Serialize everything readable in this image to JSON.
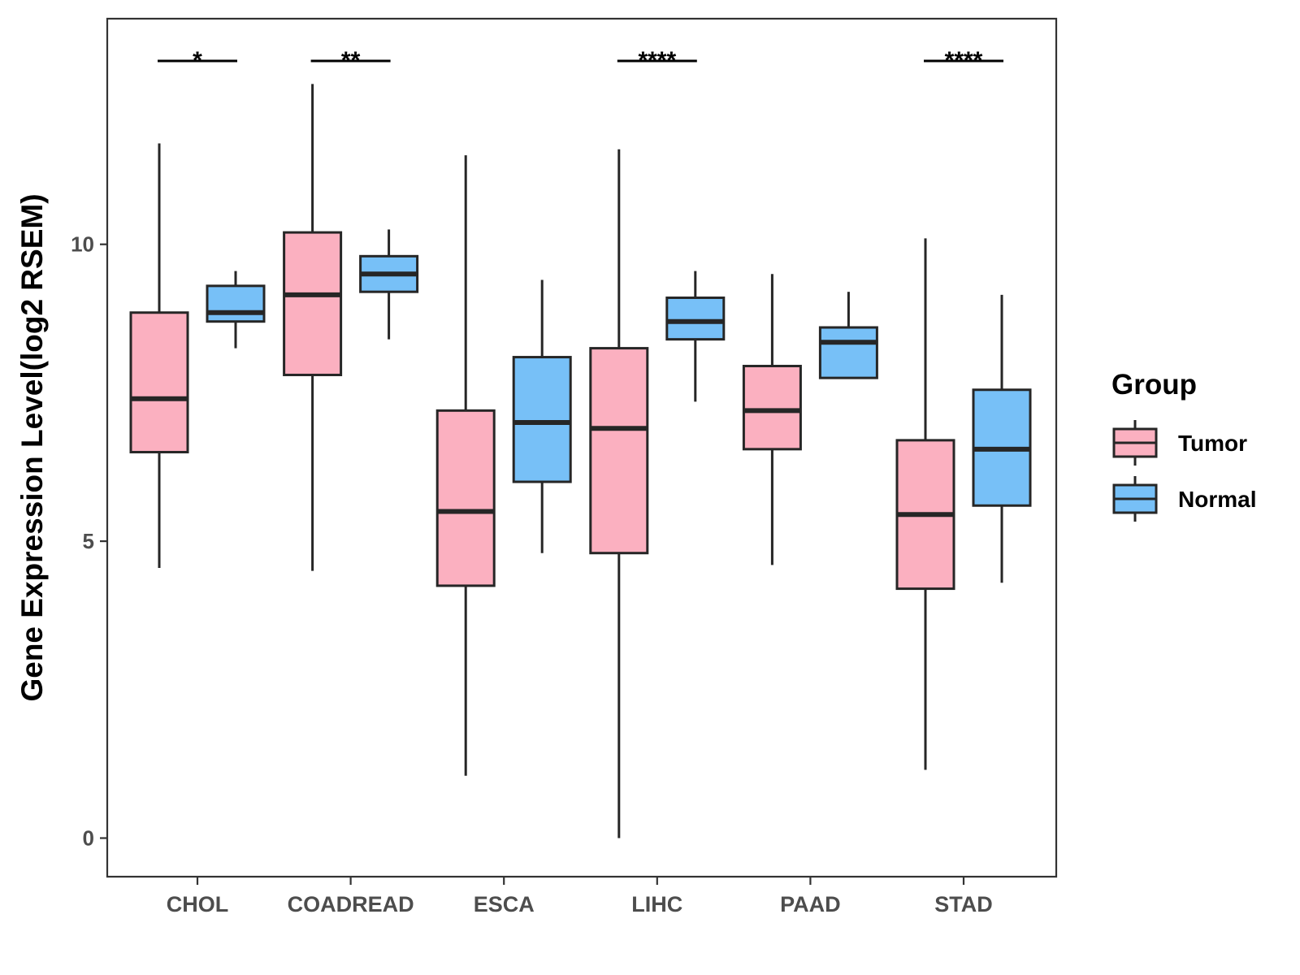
{
  "colors": {
    "tumor": "#FBB0C0",
    "normal": "#77C0F7",
    "outline": "#262626",
    "panel_border": "#333333",
    "tick_text": "#4d4d4d"
  },
  "chart_data": {
    "type": "boxplot",
    "title": "",
    "xlabel": "",
    "ylabel": "Gene Expression Level(log2 RSEM)",
    "ylim": [
      -0.65,
      13.8
    ],
    "y_ticks": [
      0,
      5,
      10
    ],
    "y_tick_labels": [
      "0",
      "5",
      "10"
    ],
    "grid": false,
    "legend_position": "right",
    "legend": {
      "title": "Group",
      "entries": [
        {
          "name": "Tumor",
          "color_key": "tumor"
        },
        {
          "name": "Normal",
          "color_key": "normal"
        }
      ]
    },
    "categories": [
      "CHOL",
      "COADREAD",
      "ESCA",
      "LIHC",
      "PAAD",
      "STAD"
    ],
    "series": [
      {
        "name": "Tumor",
        "color_key": "tumor",
        "boxes": [
          {
            "min": 4.55,
            "q1": 6.5,
            "median": 7.4,
            "q3": 8.85,
            "max": 11.7
          },
          {
            "min": 4.5,
            "q1": 7.8,
            "median": 9.15,
            "q3": 10.2,
            "max": 12.7
          },
          {
            "min": 1.05,
            "q1": 4.25,
            "median": 5.5,
            "q3": 7.2,
            "max": 11.5
          },
          {
            "min": 0.0,
            "q1": 4.8,
            "median": 6.9,
            "q3": 8.25,
            "max": 11.6
          },
          {
            "min": 4.6,
            "q1": 6.55,
            "median": 7.2,
            "q3": 7.95,
            "max": 9.5
          },
          {
            "min": 1.15,
            "q1": 4.2,
            "median": 5.45,
            "q3": 6.7,
            "max": 10.1
          }
        ]
      },
      {
        "name": "Normal",
        "color_key": "normal",
        "boxes": [
          {
            "min": 8.25,
            "q1": 8.7,
            "median": 8.85,
            "q3": 9.3,
            "max": 9.55
          },
          {
            "min": 8.4,
            "q1": 9.2,
            "median": 9.5,
            "q3": 9.8,
            "max": 10.25
          },
          {
            "min": 4.8,
            "q1": 6.0,
            "median": 7.0,
            "q3": 8.1,
            "max": 9.4
          },
          {
            "min": 7.35,
            "q1": 8.4,
            "median": 8.7,
            "q3": 9.1,
            "max": 9.55
          },
          {
            "min": 7.75,
            "q1": 7.75,
            "median": 8.35,
            "q3": 8.6,
            "max": 9.2
          },
          {
            "min": 4.3,
            "q1": 5.6,
            "median": 6.55,
            "q3": 7.55,
            "max": 9.15
          }
        ]
      }
    ],
    "significance": [
      {
        "category_index": 0,
        "label": "*"
      },
      {
        "category_index": 1,
        "label": "**"
      },
      {
        "category_index": 3,
        "label": "****"
      },
      {
        "category_index": 5,
        "label": "****"
      }
    ]
  }
}
